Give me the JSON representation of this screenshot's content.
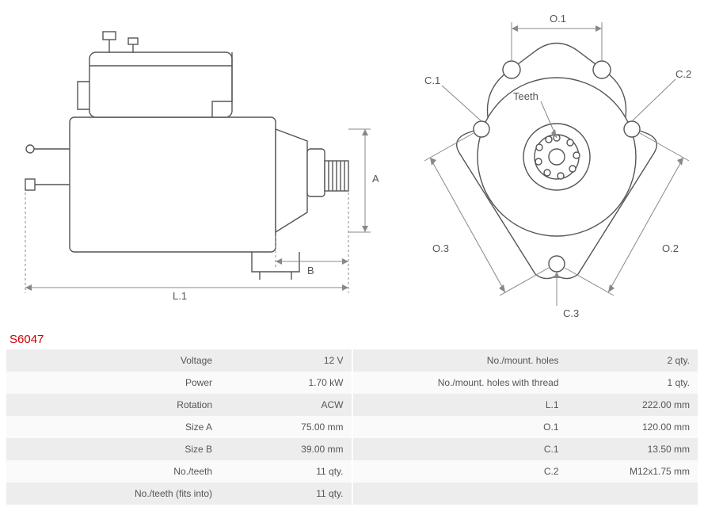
{
  "part_number": "S6047",
  "diagrams": {
    "side": {
      "dim_labels": {
        "L1": "L.1",
        "A": "A",
        "B": "B"
      },
      "stroke": "#555555",
      "stroke_width": 1.4,
      "dim_stroke": "#888888",
      "fill": "#ffffff"
    },
    "front": {
      "dim_labels": {
        "O1": "O.1",
        "O2": "O.2",
        "O3": "O.3",
        "C1": "C.1",
        "C2": "C.2",
        "C3": "C.3",
        "teeth": "Teeth"
      },
      "stroke": "#555555",
      "stroke_width": 1.4,
      "dim_stroke": "#888888",
      "fill": "#ffffff"
    }
  },
  "specs_left": [
    {
      "label": "Voltage",
      "value": "12 V"
    },
    {
      "label": "Power",
      "value": "1.70 kW"
    },
    {
      "label": "Rotation",
      "value": "ACW"
    },
    {
      "label": "Size A",
      "value": "75.00 mm"
    },
    {
      "label": "Size B",
      "value": "39.00 mm"
    },
    {
      "label": "No./teeth",
      "value": "11 qty."
    },
    {
      "label": "No./teeth (fits into)",
      "value": "11 qty."
    }
  ],
  "specs_right": [
    {
      "label": "No./mount. holes",
      "value": "2 qty."
    },
    {
      "label": "No./mount. holes with thread",
      "value": "1 qty."
    },
    {
      "label": "L.1",
      "value": "222.00 mm"
    },
    {
      "label": "O.1",
      "value": "120.00 mm"
    },
    {
      "label": "C.1",
      "value": "13.50 mm"
    },
    {
      "label": "C.2",
      "value": "M12x1.75 mm"
    },
    {
      "label": "",
      "value": ""
    }
  ],
  "table_style": {
    "odd_bg": "#ededed",
    "even_bg": "#fafafa",
    "text_color": "#555555",
    "font_size": 12
  },
  "part_number_style": {
    "color": "#cc0000",
    "font_size": 15
  }
}
